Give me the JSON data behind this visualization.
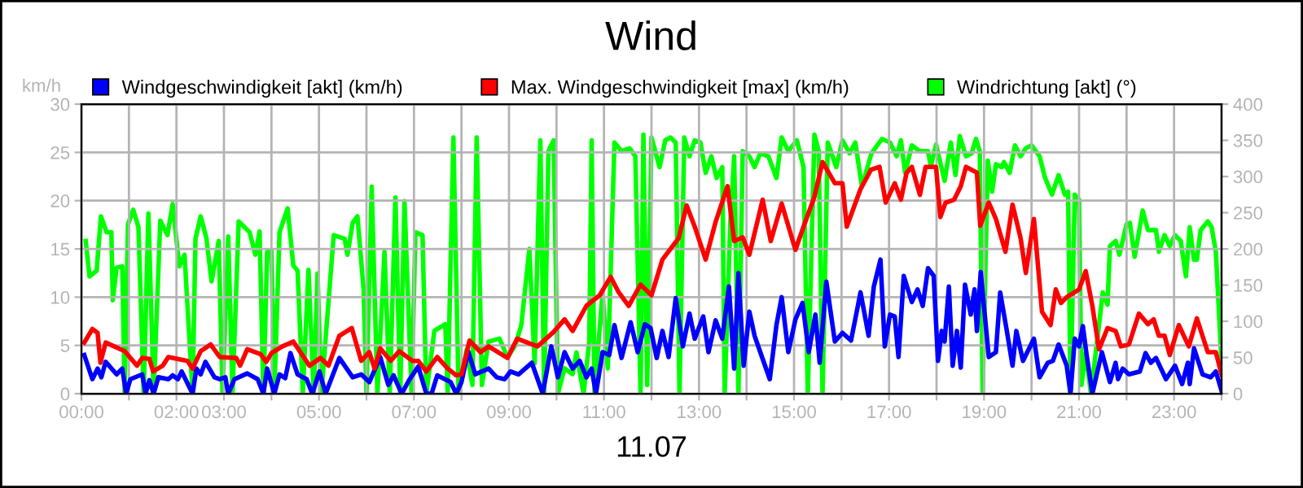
{
  "chart_data": {
    "type": "line",
    "title": "Wind",
    "xlabel": "11.07",
    "ylabel": "km/h",
    "legend": "top",
    "grid": true,
    "line_style": "solid",
    "marker": "none",
    "xlim": [
      0,
      24
    ],
    "ylim": [
      0,
      30
    ],
    "y2lim": [
      0,
      400
    ],
    "xticks": [
      {
        "value": 0,
        "label": "00:00"
      },
      {
        "value": 1,
        "label": null
      },
      {
        "value": 2,
        "label": "02:00"
      },
      {
        "value": 3,
        "label": "03:00"
      },
      {
        "value": 4,
        "label": null
      },
      {
        "value": 5,
        "label": "05:00"
      },
      {
        "value": 6,
        "label": null
      },
      {
        "value": 7,
        "label": "07:00"
      },
      {
        "value": 8,
        "label": null
      },
      {
        "value": 9,
        "label": "09:00"
      },
      {
        "value": 10,
        "label": null
      },
      {
        "value": 11,
        "label": "11:00"
      },
      {
        "value": 12,
        "label": null
      },
      {
        "value": 13,
        "label": "13:00"
      },
      {
        "value": 14,
        "label": null
      },
      {
        "value": 15,
        "label": "15:00"
      },
      {
        "value": 16,
        "label": null
      },
      {
        "value": 17,
        "label": "17:00"
      },
      {
        "value": 18,
        "label": null
      },
      {
        "value": 19,
        "label": "19:00"
      },
      {
        "value": 20,
        "label": null
      },
      {
        "value": 21,
        "label": "21:00"
      },
      {
        "value": 22,
        "label": null
      },
      {
        "value": 23,
        "label": "23:00"
      },
      {
        "value": 24,
        "label": null
      }
    ],
    "yticks": [
      0,
      5,
      10,
      15,
      20,
      25,
      30
    ],
    "y2ticks": [
      0,
      50,
      100,
      150,
      200,
      250,
      300,
      350,
      400
    ],
    "series": [
      {
        "name": "Windgeschwindigkeit [akt] (km/h)",
        "color": "#0000ff",
        "x": [
          0.06,
          0.23,
          0.34,
          0.42,
          0.51,
          0.74,
          0.86,
          0.94,
          1.03,
          1.28,
          1.35,
          1.43,
          1.52,
          1.62,
          1.83,
          1.92,
          2.03,
          2.11,
          2.34,
          2.42,
          2.51,
          2.61,
          2.8,
          2.91,
          3.03,
          3.09,
          3.22,
          3.49,
          3.71,
          3.83,
          3.91,
          4.06,
          4.17,
          4.29,
          4.4,
          4.55,
          4.74,
          4.86,
          5.01,
          5.14,
          5.43,
          5.71,
          5.89,
          6.06,
          6.29,
          6.46,
          6.57,
          6.74,
          6.91,
          7.09,
          7.26,
          7.37,
          7.49,
          7.77,
          7.89,
          8.0,
          8.14,
          8.29,
          8.57,
          8.74,
          8.91,
          9.03,
          9.2,
          9.48,
          9.71,
          9.89,
          10.03,
          10.17,
          10.34,
          10.49,
          10.63,
          10.74,
          10.83,
          10.97,
          11.11,
          11.22,
          11.37,
          11.56,
          11.71,
          11.86,
          11.98,
          12.11,
          12.23,
          12.36,
          12.51,
          12.66,
          12.8,
          12.91,
          13.09,
          13.2,
          13.35,
          13.49,
          13.63,
          13.74,
          13.83,
          13.94,
          14.06,
          14.17,
          14.29,
          14.49,
          14.63,
          14.74,
          14.88,
          15.03,
          15.18,
          15.31,
          15.45,
          15.54,
          15.68,
          15.86,
          16.02,
          16.2,
          16.4,
          16.57,
          16.68,
          16.82,
          16.91,
          17.02,
          17.12,
          17.2,
          17.31,
          17.48,
          17.6,
          17.71,
          17.82,
          17.94,
          18.03,
          18.11,
          18.17,
          18.26,
          18.34,
          18.43,
          18.51,
          18.6,
          18.72,
          18.8,
          18.85,
          18.93,
          19.1,
          19.25,
          19.34,
          19.48,
          19.6,
          19.68,
          19.82,
          20.05,
          20.17,
          20.34,
          20.45,
          20.57,
          20.74,
          20.82,
          20.91,
          21.0,
          21.08,
          21.16,
          21.28,
          21.48,
          21.65,
          21.77,
          21.82,
          21.92,
          22.05,
          22.28,
          22.4,
          22.51,
          22.62,
          22.83,
          23.02,
          23.17,
          23.29,
          23.33,
          23.42,
          23.6,
          23.77,
          23.88,
          24.0
        ],
        "values": [
          4.0,
          1.5,
          2.6,
          1.7,
          3.3,
          2.0,
          2.6,
          0,
          1.5,
          2.0,
          0,
          1.4,
          0,
          1.7,
          1.5,
          1.9,
          1.5,
          2.3,
          0,
          2.6,
          2.0,
          3.3,
          1.7,
          1.5,
          1.7,
          0,
          1.5,
          2.1,
          1.5,
          0,
          2.6,
          0,
          2.0,
          1.6,
          4.2,
          2.0,
          1.5,
          0,
          2.3,
          0,
          3.7,
          1.7,
          2.0,
          1.2,
          3.8,
          0.9,
          1.9,
          0,
          1.5,
          2.8,
          0,
          0,
          1.9,
          1.2,
          0,
          1.2,
          4.4,
          2.0,
          2.6,
          1.7,
          1.5,
          2.3,
          2.0,
          3.2,
          0,
          4.9,
          1.7,
          4.3,
          2.6,
          3.4,
          1.7,
          2.6,
          0,
          4.3,
          4.0,
          7.1,
          3.7,
          7.4,
          4.3,
          7.2,
          6.8,
          3.7,
          6.5,
          3.8,
          9.9,
          4.9,
          8.3,
          5.7,
          8.0,
          4.3,
          7.6,
          5.7,
          11.1,
          2.6,
          12.5,
          2.9,
          8.5,
          6.0,
          4.3,
          1.5,
          7.1,
          10.0,
          4.3,
          7.7,
          9.4,
          4.3,
          8.2,
          3.2,
          11.6,
          5.4,
          6.3,
          5.5,
          10.5,
          6.0,
          11.1,
          13.9,
          4.9,
          8.2,
          8.0,
          3.8,
          12.2,
          9.5,
          10.8,
          9.1,
          13.0,
          12.2,
          3.4,
          6.5,
          5.4,
          11.1,
          2.9,
          6.5,
          2.7,
          11.3,
          8.2,
          10.8,
          6.5,
          12.6,
          3.8,
          4.3,
          10.5,
          6.5,
          2.9,
          6.5,
          3.4,
          5.7,
          1.7,
          3.2,
          3.4,
          5.1,
          2.9,
          0,
          5.7,
          4.9,
          7.0,
          4.0,
          0,
          4.3,
          1.2,
          3.2,
          1.5,
          2.6,
          2.0,
          2.3,
          4.2,
          3.2,
          3.7,
          1.5,
          2.9,
          1.0,
          3.2,
          1.0,
          4.7,
          2.0,
          1.7,
          2.3,
          0.3
        ]
      },
      {
        "name": "Max. Windgeschwindigkeit [max] (km/h)",
        "color": "#ff0000",
        "x": [
          0.06,
          0.23,
          0.34,
          0.4,
          0.51,
          0.91,
          1.17,
          1.28,
          1.43,
          1.51,
          1.71,
          1.83,
          2.23,
          2.34,
          2.51,
          2.72,
          2.91,
          3.26,
          3.34,
          3.49,
          3.77,
          3.89,
          4.0,
          4.23,
          4.46,
          4.8,
          5.03,
          5.2,
          5.43,
          5.69,
          5.89,
          6.06,
          6.17,
          6.29,
          6.51,
          6.69,
          6.97,
          7.09,
          7.26,
          7.49,
          7.71,
          7.89,
          8.0,
          8.17,
          8.4,
          8.57,
          8.97,
          9.17,
          9.6,
          9.94,
          10.17,
          10.34,
          10.63,
          10.91,
          11.14,
          11.31,
          11.52,
          11.77,
          12.0,
          12.23,
          12.57,
          12.74,
          12.91,
          13.14,
          13.35,
          13.6,
          13.74,
          13.92,
          14.06,
          14.34,
          14.51,
          14.74,
          15.03,
          15.2,
          15.43,
          15.6,
          15.86,
          16.02,
          16.11,
          16.4,
          16.62,
          16.8,
          16.93,
          17.12,
          17.25,
          17.37,
          17.48,
          17.65,
          17.77,
          17.99,
          18.08,
          18.19,
          18.37,
          18.51,
          18.62,
          18.85,
          18.92,
          19.1,
          19.25,
          19.45,
          19.6,
          19.77,
          19.88,
          20.05,
          20.22,
          20.4,
          20.51,
          20.62,
          20.74,
          21.0,
          21.14,
          21.28,
          21.42,
          21.6,
          21.77,
          21.88,
          22.05,
          22.26,
          22.45,
          22.57,
          22.68,
          22.8,
          22.91,
          23.1,
          23.31,
          23.48,
          23.71,
          23.88,
          24.0
        ],
        "values": [
          5.3,
          6.7,
          6.3,
          3.2,
          5.3,
          4.4,
          2.9,
          3.7,
          3.6,
          2.3,
          2.9,
          3.8,
          3.4,
          2.6,
          4.4,
          5.1,
          3.8,
          3.7,
          2.9,
          4.6,
          4.1,
          3.3,
          4.2,
          4.9,
          5.4,
          2.9,
          3.7,
          2.9,
          6.0,
          6.8,
          3.4,
          4.3,
          2.6,
          4.7,
          3.4,
          4.4,
          3.4,
          3.4,
          2.3,
          3.8,
          2.6,
          1.9,
          2.0,
          5.5,
          4.3,
          4.9,
          3.7,
          5.7,
          4.9,
          6.4,
          7.7,
          6.5,
          9.1,
          10.2,
          12.1,
          10.5,
          9.1,
          11.3,
          10.2,
          13.9,
          16.1,
          19.5,
          17.3,
          13.9,
          17.8,
          21.5,
          15.8,
          16.2,
          14.4,
          20.1,
          15.8,
          19.7,
          14.9,
          17.3,
          20.4,
          24.0,
          21.8,
          21.8,
          17.3,
          21.2,
          23.2,
          23.5,
          19.8,
          21.8,
          20.1,
          22.9,
          23.5,
          20.6,
          23.5,
          23.5,
          18.3,
          19.8,
          20.1,
          21.5,
          23.5,
          22.9,
          17.4,
          19.8,
          18.1,
          14.7,
          19.6,
          16.1,
          12.5,
          18.1,
          8.5,
          7.1,
          10.8,
          9.4,
          10.0,
          10.8,
          12.7,
          9.1,
          4.6,
          6.8,
          6.5,
          4.9,
          5.1,
          8.3,
          7.2,
          7.7,
          6.0,
          6.0,
          4.0,
          7.1,
          4.9,
          7.8,
          4.3,
          4.3,
          2.0
        ]
      },
      {
        "name": "Windrichtung [akt] (°)",
        "color": "#00ff00",
        "axis": "y2",
        "x": [
          0.09,
          0.17,
          0.32,
          0.41,
          0.53,
          0.63,
          0.66,
          0.74,
          0.86,
          0.91,
          0.98,
          1.09,
          1.2,
          1.31,
          1.41,
          1.52,
          1.66,
          1.81,
          1.92,
          2.06,
          2.17,
          2.34,
          2.4,
          2.51,
          2.63,
          2.74,
          2.89,
          2.97,
          3.09,
          3.18,
          3.31,
          3.54,
          3.66,
          3.75,
          3.83,
          3.91,
          4.0,
          4.06,
          4.17,
          4.34,
          4.46,
          4.55,
          4.66,
          4.78,
          4.89,
          4.97,
          5.05,
          5.31,
          5.54,
          5.6,
          5.71,
          5.81,
          5.94,
          6.0,
          6.11,
          6.23,
          6.38,
          6.49,
          6.61,
          6.71,
          6.8,
          6.95,
          7.03,
          7.18,
          7.26,
          7.43,
          7.66,
          7.71,
          7.83,
          7.94,
          8.11,
          8.23,
          8.32,
          8.43,
          8.57,
          8.8,
          8.97,
          9.14,
          9.26,
          9.43,
          9.54,
          9.66,
          9.74,
          9.83,
          9.94,
          10.03,
          10.17,
          10.34,
          10.42,
          10.57,
          10.69,
          10.74,
          10.8,
          10.97,
          11.08,
          11.22,
          11.37,
          11.54,
          11.66,
          11.77,
          11.83,
          11.91,
          12.0,
          12.17,
          12.29,
          12.4,
          12.51,
          12.59,
          12.69,
          12.8,
          12.91,
          13.03,
          13.14,
          13.26,
          13.37,
          13.49,
          13.54,
          13.66,
          13.74,
          13.83,
          13.92,
          14.06,
          14.17,
          14.29,
          14.46,
          14.63,
          14.74,
          14.88,
          15.06,
          15.2,
          15.29,
          15.43,
          15.52,
          15.6,
          15.71,
          15.89,
          16.02,
          16.17,
          16.29,
          16.43,
          16.63,
          16.85,
          17.02,
          17.16,
          17.25,
          17.34,
          17.48,
          17.65,
          17.82,
          17.88,
          17.99,
          18.17,
          18.3,
          18.4,
          18.49,
          18.62,
          18.74,
          18.83,
          18.91,
          18.97,
          19.08,
          19.17,
          19.25,
          19.37,
          19.42,
          19.54,
          19.65,
          19.77,
          19.88,
          20.0,
          20.17,
          20.28,
          20.43,
          20.57,
          20.7,
          20.77,
          20.82,
          20.91,
          21.0,
          21.05,
          21.14,
          21.25,
          21.42,
          21.5,
          21.6,
          21.65,
          21.77,
          21.85,
          22.0,
          22.07,
          22.17,
          22.34,
          22.45,
          22.62,
          22.68,
          22.8,
          22.91,
          23.02,
          23.14,
          23.25,
          23.33,
          23.42,
          23.48,
          23.56,
          23.71,
          23.79,
          23.88,
          24.0
        ],
        "values": [
          211,
          162,
          170,
          245,
          223,
          223,
          129,
          174,
          176,
          0,
          234,
          254,
          230,
          0,
          249,
          0,
          239,
          219,
          262,
          176,
          192,
          0,
          214,
          245,
          215,
          155,
          211,
          0,
          217,
          0,
          238,
          223,
          192,
          224,
          0,
          196,
          198,
          0,
          223,
          256,
          177,
          170,
          0,
          171,
          0,
          166,
          0,
          219,
          214,
          192,
          236,
          245,
          144,
          0,
          286,
          0,
          196,
          0,
          271,
          0,
          266,
          0,
          223,
          219,
          0,
          87,
          96,
          0,
          354,
          0,
          61,
          12,
          354,
          12,
          72,
          76,
          50,
          68,
          95,
          200,
          42,
          350,
          0,
          335,
          350,
          0,
          35,
          27,
          57,
          0,
          72,
          350,
          0,
          140,
          35,
          347,
          335,
          339,
          328,
          0,
          358,
          12,
          354,
          313,
          350,
          354,
          347,
          0,
          354,
          328,
          350,
          347,
          305,
          328,
          298,
          313,
          0,
          238,
          328,
          0,
          335,
          328,
          313,
          332,
          328,
          298,
          354,
          335,
          350,
          313,
          0,
          358,
          335,
          0,
          347,
          313,
          350,
          332,
          347,
          286,
          332,
          352,
          347,
          328,
          350,
          305,
          343,
          335,
          335,
          314,
          344,
          294,
          347,
          302,
          356,
          328,
          332,
          352,
          335,
          0,
          322,
          279,
          317,
          313,
          320,
          305,
          343,
          328,
          339,
          343,
          328,
          299,
          275,
          302,
          275,
          279,
          0,
          275,
          268,
          12,
          57,
          0,
          95,
          140,
          123,
          204,
          211,
          192,
          234,
          236,
          189,
          253,
          226,
          226,
          196,
          219,
          204,
          219,
          211,
          162,
          230,
          185,
          185,
          226,
          238,
          230,
          196,
          42
        ]
      }
    ]
  }
}
